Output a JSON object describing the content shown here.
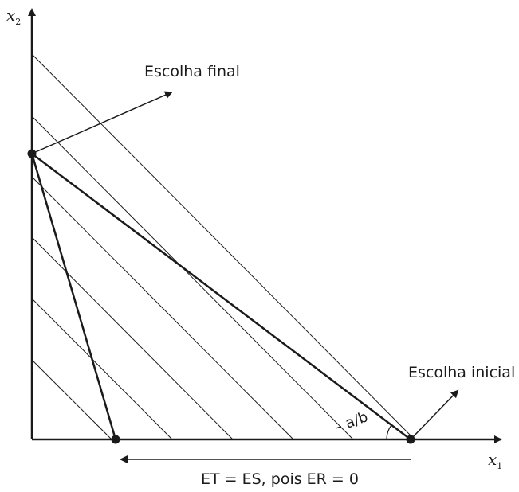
{
  "axes": {
    "x_label": "x",
    "x_sub": "1",
    "y_label": "x",
    "y_sub": "2"
  },
  "labels": {
    "final_choice": "Escolha final",
    "initial_choice": "Escolha inicial",
    "slope": "– a/b",
    "caption": "ET = ES, pois ER = 0"
  },
  "colors": {
    "ink": "#1a1a1a"
  }
}
